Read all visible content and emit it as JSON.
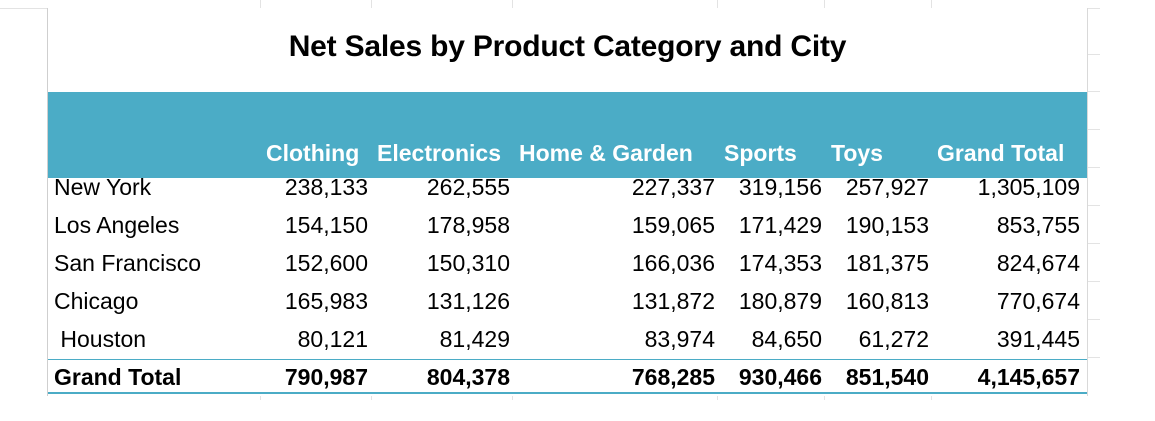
{
  "title": "Net Sales by Product Category and City",
  "colors": {
    "header_band": "#4bacc6",
    "header_text": "#ffffff"
  },
  "headers": [
    "Clothing",
    "Electronics",
    "Home & Garden",
    "Sports",
    "Toys",
    "Grand Total"
  ],
  "rows": [
    {
      "city": "New York",
      "values": [
        "238,133",
        "262,555",
        "227,337",
        "319,156",
        "257,927",
        "1,305,109"
      ]
    },
    {
      "city": "Los Angeles",
      "values": [
        "154,150",
        "178,958",
        "159,065",
        "171,429",
        "190,153",
        "853,755"
      ]
    },
    {
      "city": "San Francisco",
      "values": [
        "152,600",
        "150,310",
        "166,036",
        "174,353",
        "181,375",
        "824,674"
      ]
    },
    {
      "city": "Chicago",
      "values": [
        "165,983",
        "131,126",
        "131,872",
        "180,879",
        "160,813",
        "770,674"
      ]
    },
    {
      "city": " Houston",
      "values": [
        "80,121",
        "81,429",
        "83,974",
        "84,650",
        "61,272",
        "391,445"
      ]
    }
  ],
  "total_row": {
    "label": "Grand Total",
    "values": [
      "790,987",
      "804,378",
      "768,285",
      "930,466",
      "851,540",
      "4,145,657"
    ]
  }
}
